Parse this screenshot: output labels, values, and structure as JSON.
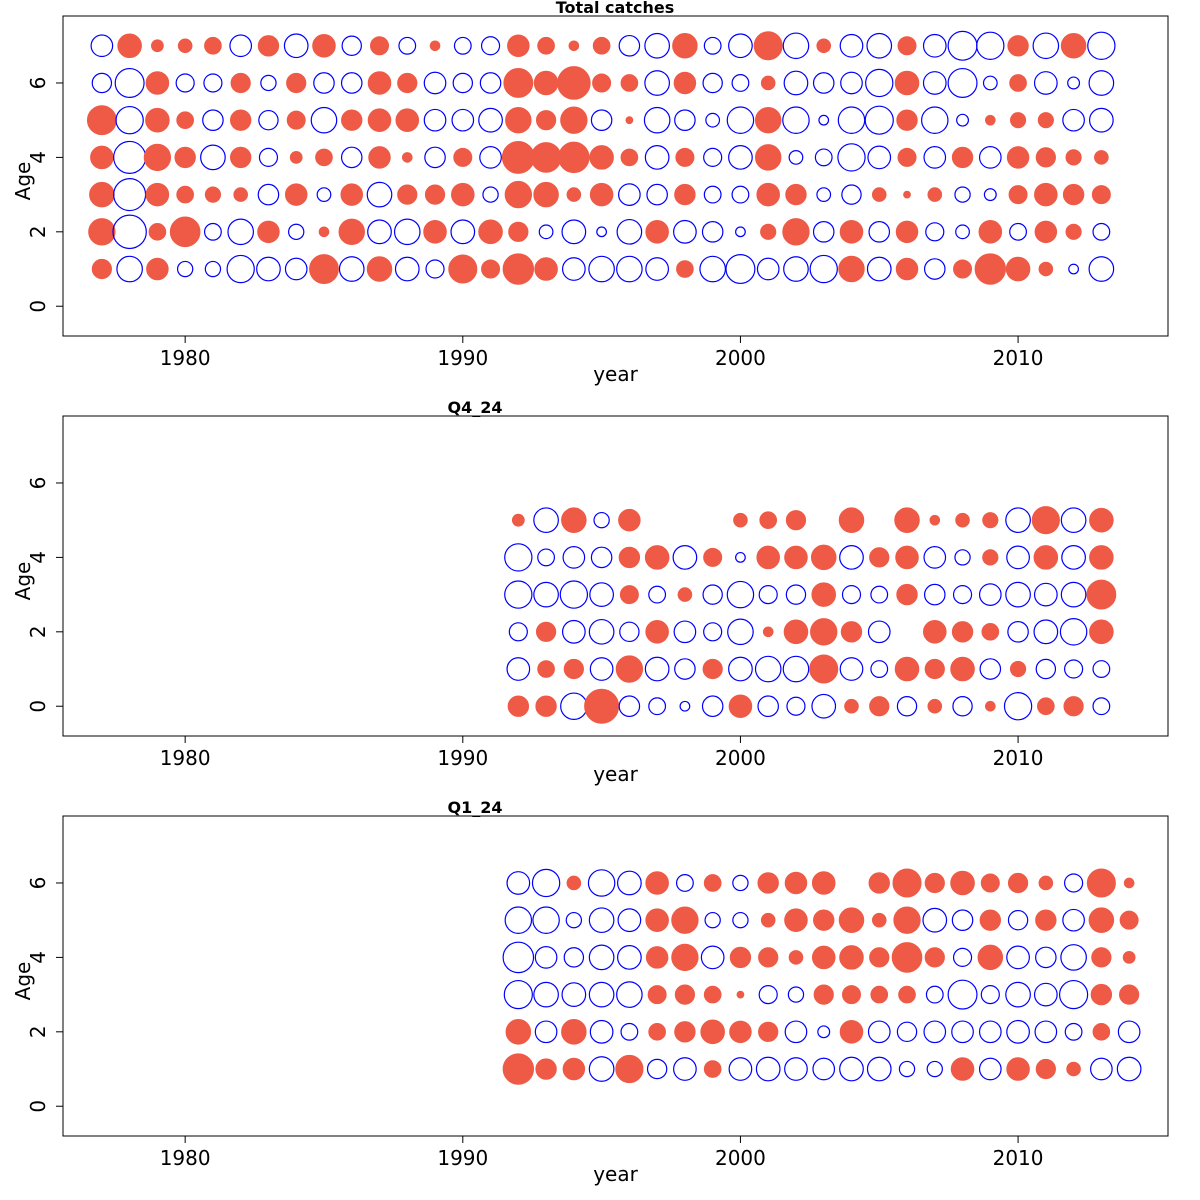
{
  "colors": {
    "positive": "#ee5a45",
    "negative": "#0000ff"
  },
  "chart_data": [
    {
      "type": "scatter",
      "subtype": "bubble-residuals",
      "title": "Total catches",
      "xlabel": "year",
      "ylabel": "Age",
      "xlim": [
        1975.6,
        2015.4
      ],
      "ylim": [
        -0.8,
        7.8
      ],
      "xticks": [
        1980,
        1990,
        2000,
        2010
      ],
      "yticks": [
        0,
        2,
        4,
        6
      ],
      "fill_meaning": "filled = positive, open = negative",
      "years": [
        1977,
        1978,
        1979,
        1980,
        1981,
        1982,
        1983,
        1984,
        1985,
        1986,
        1987,
        1988,
        1989,
        1990,
        1991,
        1992,
        1993,
        1994,
        1995,
        1996,
        1997,
        1998,
        1999,
        2000,
        2001,
        2002,
        2003,
        2004,
        2005,
        2006,
        2007,
        2008,
        2009,
        2010,
        2011,
        2012,
        2013
      ],
      "ages": [
        1,
        2,
        3,
        4,
        5,
        6,
        7
      ],
      "residuals": [
        [
          0.4,
          -0.7,
          0.5,
          -0.25,
          -0.25,
          -0.8,
          -0.6,
          -0.5,
          0.9,
          -0.65,
          0.65,
          -0.6,
          -0.35,
          0.85,
          0.35,
          1.0,
          0.55,
          -0.55,
          -0.7,
          -0.7,
          -0.55,
          0.3,
          -0.7,
          -0.9,
          -0.5,
          -0.65,
          -0.8,
          0.7,
          -0.6,
          0.5,
          -0.45,
          0.35,
          1.0,
          0.6,
          0.2,
          -0.1,
          -0.65
        ],
        [
          0.75,
          -1.2,
          0.3,
          0.95,
          -0.3,
          -0.7,
          0.5,
          -0.25,
          0.1,
          0.7,
          -0.6,
          -0.7,
          0.55,
          -0.6,
          0.6,
          0.4,
          -0.2,
          -0.6,
          -0.1,
          -0.65,
          0.55,
          -0.55,
          -0.45,
          -0.1,
          0.25,
          0.75,
          -0.45,
          0.55,
          -0.45,
          0.5,
          -0.35,
          -0.2,
          0.55,
          -0.3,
          0.5,
          0.25,
          -0.3
        ],
        [
          0.65,
          -1.1,
          0.55,
          0.3,
          0.25,
          0.2,
          -0.45,
          0.5,
          -0.2,
          0.5,
          -0.65,
          0.4,
          0.4,
          0.55,
          -0.25,
          0.75,
          0.65,
          0.2,
          0.55,
          -0.5,
          -0.45,
          0.45,
          -0.3,
          -0.3,
          0.55,
          0.45,
          -0.2,
          -0.4,
          0.2,
          0.05,
          0.2,
          -0.25,
          -0.15,
          0.35,
          0.55,
          0.45,
          0.35
        ],
        [
          0.55,
          -1.1,
          0.75,
          0.45,
          -0.65,
          0.45,
          -0.35,
          0.15,
          0.3,
          -0.45,
          0.5,
          0.1,
          -0.45,
          0.35,
          -0.5,
          1.1,
          0.95,
          1.0,
          0.6,
          0.3,
          -0.6,
          0.35,
          -0.35,
          -0.6,
          0.7,
          -0.2,
          -0.3,
          -0.8,
          -0.55,
          0.35,
          -0.5,
          0.45,
          -0.5,
          0.5,
          0.4,
          0.25,
          0.2
        ],
        [
          0.9,
          -0.8,
          0.6,
          0.3,
          -0.45,
          0.45,
          -0.4,
          0.35,
          -0.7,
          0.45,
          0.55,
          0.55,
          -0.5,
          -0.5,
          -0.6,
          0.7,
          0.4,
          0.75,
          -0.45,
          0.05,
          -0.7,
          -0.45,
          -0.2,
          -0.75,
          0.7,
          -0.75,
          -0.1,
          -0.75,
          -0.85,
          0.45,
          -0.75,
          -0.15,
          0.1,
          0.25,
          0.25,
          -0.5,
          -0.6
        ],
        [
          -0.4,
          -0.9,
          0.55,
          -0.35,
          -0.35,
          0.4,
          -0.25,
          0.4,
          -0.45,
          -0.45,
          0.55,
          0.4,
          -0.5,
          -0.4,
          -0.45,
          0.9,
          0.6,
          1.15,
          0.35,
          0.3,
          -0.65,
          0.5,
          -0.4,
          -0.3,
          0.2,
          -0.6,
          -0.45,
          -0.5,
          -0.8,
          0.6,
          -0.55,
          -0.9,
          -0.2,
          0.3,
          -0.55,
          -0.15,
          -0.65
        ],
        [
          -0.5,
          0.6,
          0.15,
          0.2,
          0.3,
          -0.5,
          0.45,
          -0.6,
          0.55,
          -0.4,
          0.35,
          -0.3,
          0.1,
          -0.3,
          -0.35,
          0.5,
          0.3,
          0.1,
          0.3,
          -0.45,
          -0.65,
          0.65,
          -0.3,
          -0.6,
          0.85,
          -0.7,
          0.2,
          -0.55,
          -0.65,
          0.35,
          -0.55,
          -0.9,
          -0.8,
          0.45,
          -0.7,
          0.65,
          -0.8
        ]
      ]
    },
    {
      "type": "scatter",
      "subtype": "bubble-residuals",
      "title": "Q4_24",
      "xlabel": "year",
      "ylabel": "Age",
      "xlim": [
        1975.6,
        2015.4
      ],
      "ylim": [
        -0.8,
        7.8
      ],
      "xticks": [
        1980,
        1990,
        2000,
        2010
      ],
      "yticks": [
        0,
        2,
        4,
        6
      ],
      "fill_meaning": "filled = positive, open = negative",
      "years": [
        1992,
        1993,
        1994,
        1995,
        1996,
        1997,
        1998,
        1999,
        2000,
        2001,
        2002,
        2003,
        2004,
        2005,
        2006,
        2007,
        2008,
        2009,
        2010,
        2011,
        2012,
        2013
      ],
      "ages": [
        0,
        1,
        2,
        3,
        4,
        5
      ],
      "residuals": [
        [
          0.45,
          0.45,
          -0.75,
          1.25,
          -0.45,
          -0.3,
          -0.1,
          -0.45,
          0.55,
          -0.45,
          -0.35,
          -0.6,
          0.2,
          0.4,
          -0.4,
          0.2,
          -0.4,
          0.1,
          -0.8,
          0.3,
          0.4,
          -0.3
        ],
        [
          -0.55,
          0.3,
          0.4,
          -0.55,
          0.75,
          -0.6,
          -0.45,
          0.4,
          -0.6,
          -0.7,
          -0.7,
          0.85,
          -0.55,
          -0.3,
          0.6,
          0.4,
          0.6,
          -0.45,
          0.25,
          -0.4,
          -0.35,
          -0.3
        ],
        [
          -0.35,
          0.4,
          -0.55,
          -0.65,
          -0.4,
          0.55,
          -0.5,
          -0.35,
          -0.7,
          0.1,
          0.6,
          0.75,
          0.45,
          -0.5,
          null,
          0.55,
          0.45,
          0.3,
          -0.45,
          -0.6,
          -0.75,
          0.6
        ],
        [
          -0.8,
          -0.65,
          -0.8,
          -0.6,
          0.35,
          -0.3,
          0.2,
          -0.4,
          -0.75,
          -0.35,
          -0.4,
          0.6,
          -0.35,
          -0.3,
          0.45,
          -0.45,
          -0.35,
          -0.5,
          -0.65,
          -0.55,
          -0.65,
          0.9
        ],
        [
          -0.8,
          -0.3,
          -0.5,
          -0.45,
          0.45,
          0.6,
          -0.6,
          0.35,
          -0.1,
          0.55,
          0.55,
          0.65,
          -0.6,
          0.4,
          0.55,
          -0.5,
          -0.25,
          0.25,
          -0.55,
          0.6,
          -0.6,
          0.6
        ],
        [
          0.15,
          -0.65,
          0.65,
          -0.25,
          0.5,
          null,
          null,
          null,
          0.2,
          0.3,
          0.4,
          null,
          0.65,
          null,
          0.65,
          0.1,
          0.2,
          0.25,
          -0.65,
          0.8,
          -0.65,
          0.6
        ]
      ]
    },
    {
      "type": "scatter",
      "subtype": "bubble-residuals",
      "title": "Q1_24",
      "xlabel": "year",
      "ylabel": "Age",
      "xlim": [
        1975.6,
        2015.4
      ],
      "ylim": [
        -0.8,
        7.8
      ],
      "xticks": [
        1980,
        1990,
        2000,
        2010
      ],
      "yticks": [
        0,
        2,
        4,
        6
      ],
      "fill_meaning": "filled = positive, open = negative",
      "years": [
        1992,
        1993,
        1994,
        1995,
        1996,
        1997,
        1998,
        1999,
        2000,
        2001,
        2002,
        2003,
        2004,
        2005,
        2006,
        2007,
        2008,
        2009,
        2010,
        2011,
        2012,
        2013,
        2014
      ],
      "ages": [
        1,
        2,
        3,
        4,
        5,
        6
      ],
      "residuals": [
        [
          1.0,
          0.45,
          0.5,
          -0.65,
          0.8,
          -0.4,
          -0.55,
          0.3,
          -0.55,
          -0.6,
          -0.55,
          -0.5,
          -0.6,
          -0.6,
          -0.25,
          -0.25,
          0.55,
          -0.5,
          0.55,
          0.4,
          0.2,
          -0.5,
          -0.6
        ],
        [
          0.65,
          -0.5,
          0.65,
          -0.55,
          -0.3,
          0.3,
          0.45,
          0.6,
          0.5,
          0.4,
          -0.5,
          -0.15,
          0.55,
          -0.5,
          -0.4,
          -0.5,
          -0.5,
          -0.5,
          -0.55,
          -0.5,
          -0.3,
          0.3,
          -0.5
        ],
        [
          -0.85,
          -0.65,
          -0.6,
          -0.65,
          -0.7,
          0.35,
          0.4,
          0.3,
          0.05,
          -0.35,
          -0.25,
          0.4,
          0.35,
          0.3,
          0.3,
          -0.3,
          -0.9,
          -0.35,
          -0.65,
          -0.55,
          -0.85,
          0.45,
          0.4
        ],
        [
          -1.0,
          -0.5,
          -0.4,
          -0.65,
          -0.6,
          0.5,
          0.75,
          -0.55,
          0.45,
          0.4,
          0.2,
          0.55,
          0.6,
          0.4,
          0.95,
          0.4,
          -0.35,
          0.65,
          -0.55,
          -0.45,
          -0.7,
          0.4,
          0.15
        ],
        [
          -0.75,
          -0.75,
          -0.25,
          -0.65,
          -0.55,
          0.55,
          0.75,
          -0.25,
          -0.25,
          0.2,
          0.55,
          0.45,
          0.65,
          0.2,
          0.75,
          -0.6,
          -0.45,
          0.45,
          -0.4,
          0.45,
          -0.5,
          0.65,
          0.35
        ],
        [
          -0.55,
          -0.8,
          0.2,
          -0.75,
          -0.6,
          0.55,
          -0.3,
          0.3,
          -0.25,
          0.45,
          0.5,
          0.55,
          null,
          0.45,
          0.85,
          0.4,
          0.6,
          0.35,
          0.4,
          0.2,
          -0.35,
          0.85,
          0.1
        ]
      ]
    }
  ]
}
